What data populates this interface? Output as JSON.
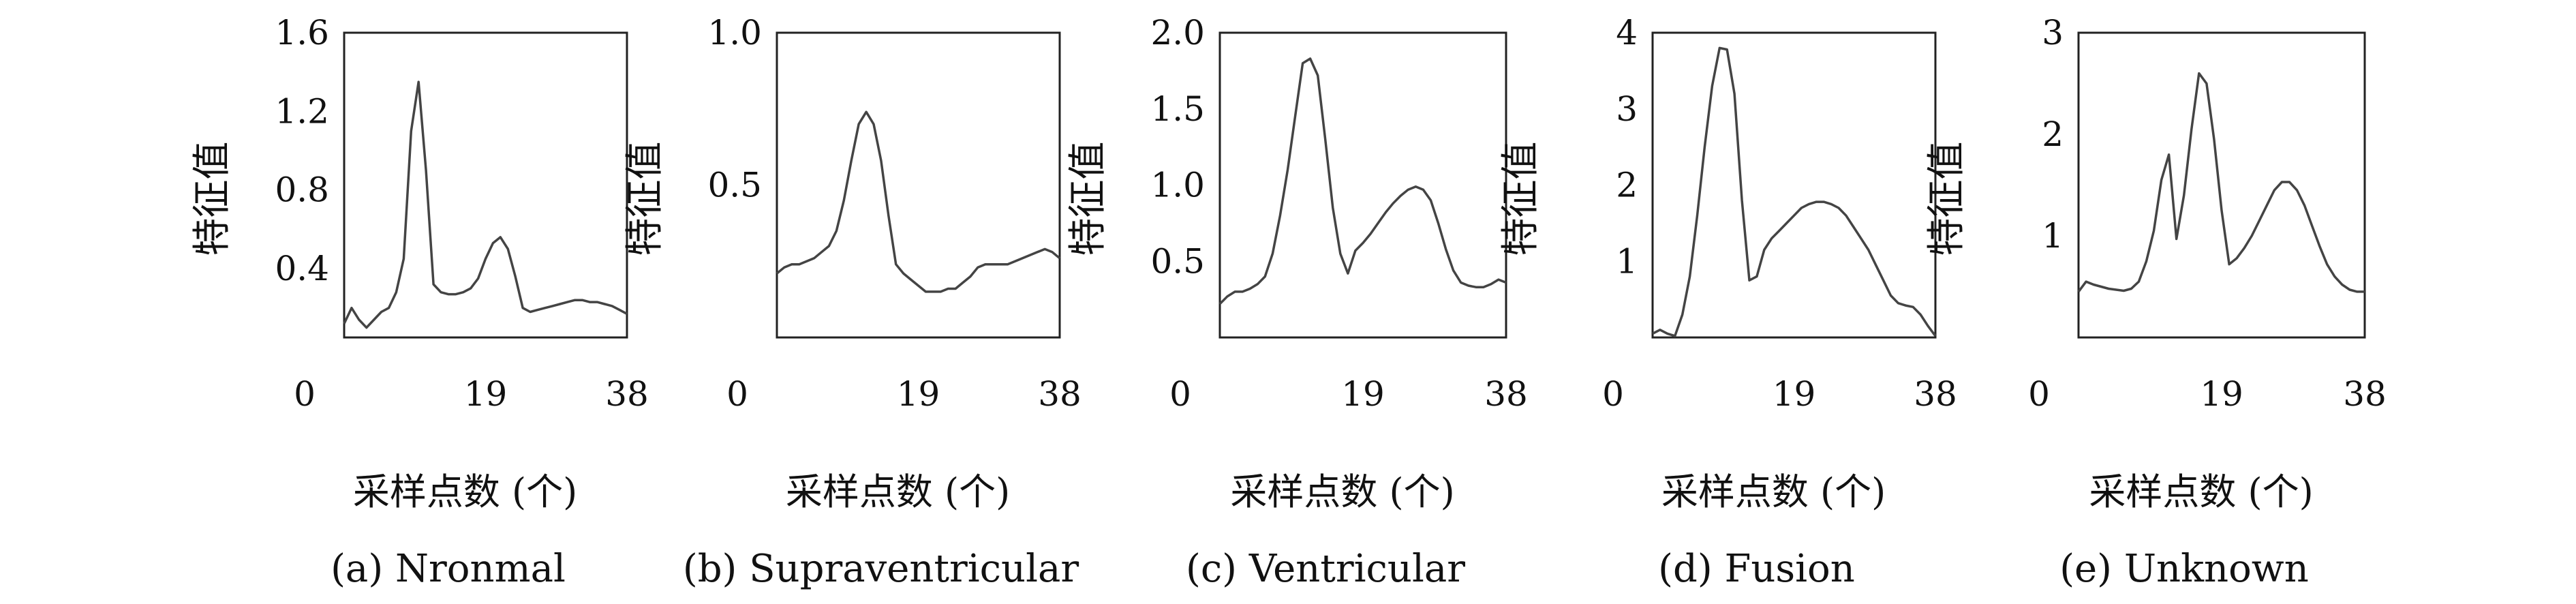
{
  "chart_data": [
    {
      "type": "line",
      "caption": "(a) Nronmal",
      "xlabel": "采样点数 (个)",
      "ylabel": "特征值",
      "xticks": [
        0,
        19,
        38
      ],
      "yticks": [
        "0.4",
        "0.8",
        "1.2",
        "1.6"
      ],
      "xlim": [
        0,
        38
      ],
      "ylim": [
        0.05,
        1.6
      ],
      "series": [
        {
          "x": [
            0,
            1,
            2,
            3,
            4,
            5,
            6,
            7,
            8,
            9,
            10,
            11,
            12,
            13,
            14,
            15,
            16,
            17,
            18,
            19,
            20,
            21,
            22,
            23,
            24,
            25,
            26,
            27,
            28,
            29,
            30,
            31,
            32,
            33,
            34,
            35,
            36,
            37,
            38
          ],
          "values": [
            0.12,
            0.2,
            0.14,
            0.1,
            0.14,
            0.18,
            0.2,
            0.28,
            0.45,
            1.1,
            1.35,
            0.9,
            0.32,
            0.28,
            0.27,
            0.27,
            0.28,
            0.3,
            0.35,
            0.45,
            0.53,
            0.56,
            0.5,
            0.36,
            0.2,
            0.18,
            0.19,
            0.2,
            0.21,
            0.22,
            0.23,
            0.24,
            0.24,
            0.23,
            0.23,
            0.22,
            0.21,
            0.19,
            0.17
          ]
        }
      ]
    },
    {
      "type": "line",
      "caption": "(b) Supraventricular",
      "xlabel": "采样点数 (个)",
      "ylabel": "特征值",
      "xticks": [
        0,
        19,
        38
      ],
      "yticks": [
        "0.5",
        "1.0"
      ],
      "xlim": [
        0,
        38
      ],
      "ylim": [
        0.0,
        1.0
      ],
      "series": [
        {
          "x": [
            0,
            1,
            2,
            3,
            4,
            5,
            6,
            7,
            8,
            9,
            10,
            11,
            12,
            13,
            14,
            15,
            16,
            17,
            18,
            19,
            20,
            21,
            22,
            23,
            24,
            25,
            26,
            27,
            28,
            29,
            30,
            31,
            32,
            33,
            34,
            35,
            36,
            37,
            38
          ],
          "values": [
            0.21,
            0.23,
            0.24,
            0.24,
            0.25,
            0.26,
            0.28,
            0.3,
            0.35,
            0.45,
            0.58,
            0.7,
            0.74,
            0.7,
            0.58,
            0.4,
            0.24,
            0.21,
            0.19,
            0.17,
            0.15,
            0.15,
            0.15,
            0.16,
            0.16,
            0.18,
            0.2,
            0.23,
            0.24,
            0.24,
            0.24,
            0.24,
            0.25,
            0.26,
            0.27,
            0.28,
            0.29,
            0.28,
            0.26
          ]
        }
      ]
    },
    {
      "type": "line",
      "caption": "(c) Ventricular",
      "xlabel": "采样点数 (个)",
      "ylabel": "特征值",
      "xticks": [
        0,
        19,
        38
      ],
      "yticks": [
        "0.5",
        "1.0",
        "1.5",
        "2.0"
      ],
      "xlim": [
        0,
        38
      ],
      "ylim": [
        0.0,
        2.0
      ],
      "series": [
        {
          "x": [
            0,
            1,
            2,
            3,
            4,
            5,
            6,
            7,
            8,
            9,
            10,
            11,
            12,
            13,
            14,
            15,
            16,
            17,
            18,
            19,
            20,
            21,
            22,
            23,
            24,
            25,
            26,
            27,
            28,
            29,
            30,
            31,
            32,
            33,
            34,
            35,
            36,
            37,
            38
          ],
          "values": [
            0.22,
            0.27,
            0.3,
            0.3,
            0.32,
            0.35,
            0.4,
            0.55,
            0.8,
            1.1,
            1.45,
            1.8,
            1.83,
            1.72,
            1.3,
            0.85,
            0.55,
            0.42,
            0.57,
            0.62,
            0.68,
            0.75,
            0.82,
            0.88,
            0.93,
            0.97,
            0.99,
            0.97,
            0.9,
            0.75,
            0.58,
            0.44,
            0.36,
            0.34,
            0.33,
            0.33,
            0.35,
            0.38,
            0.36
          ]
        }
      ]
    },
    {
      "type": "line",
      "caption": "(d) Fusion",
      "xlabel": "采样点数 (个)",
      "ylabel": "特征值",
      "xticks": [
        0,
        19,
        38
      ],
      "yticks": [
        "1",
        "2",
        "3",
        "4"
      ],
      "xlim": [
        0,
        38
      ],
      "ylim": [
        0.0,
        4.0
      ],
      "series": [
        {
          "x": [
            0,
            1,
            2,
            3,
            4,
            5,
            6,
            7,
            8,
            9,
            10,
            11,
            12,
            13,
            14,
            15,
            16,
            17,
            18,
            19,
            20,
            21,
            22,
            23,
            24,
            25,
            26,
            27,
            28,
            29,
            30,
            31,
            32,
            33,
            34,
            35,
            36,
            37,
            38
          ],
          "values": [
            0.05,
            0.1,
            0.05,
            0.02,
            0.3,
            0.8,
            1.6,
            2.5,
            3.3,
            3.8,
            3.78,
            3.2,
            1.8,
            0.75,
            0.8,
            1.15,
            1.3,
            1.4,
            1.5,
            1.6,
            1.7,
            1.75,
            1.78,
            1.78,
            1.75,
            1.7,
            1.6,
            1.45,
            1.3,
            1.15,
            0.95,
            0.75,
            0.55,
            0.45,
            0.42,
            0.4,
            0.3,
            0.15,
            0.02
          ]
        }
      ]
    },
    {
      "type": "line",
      "caption": "(e) Unknown",
      "xlabel": "采样点数 (个)",
      "ylabel": "特征值",
      "xticks": [
        0,
        19,
        38
      ],
      "yticks": [
        "1",
        "2",
        "3"
      ],
      "xlim": [
        0,
        38
      ],
      "ylim": [
        0.0,
        3.0
      ],
      "series": [
        {
          "x": [
            0,
            1,
            2,
            3,
            4,
            5,
            6,
            7,
            8,
            9,
            10,
            11,
            12,
            13,
            14,
            15,
            16,
            17,
            18,
            19,
            20,
            21,
            22,
            23,
            24,
            25,
            26,
            27,
            28,
            29,
            30,
            31,
            32,
            33,
            34,
            35,
            36,
            37,
            38
          ],
          "values": [
            0.45,
            0.55,
            0.52,
            0.5,
            0.48,
            0.47,
            0.46,
            0.48,
            0.55,
            0.75,
            1.05,
            1.55,
            1.8,
            0.97,
            1.4,
            2.05,
            2.6,
            2.5,
            1.95,
            1.25,
            0.72,
            0.78,
            0.88,
            1.0,
            1.15,
            1.3,
            1.45,
            1.53,
            1.53,
            1.45,
            1.3,
            1.1,
            0.9,
            0.72,
            0.6,
            0.52,
            0.47,
            0.45,
            0.45
          ]
        }
      ]
    }
  ]
}
